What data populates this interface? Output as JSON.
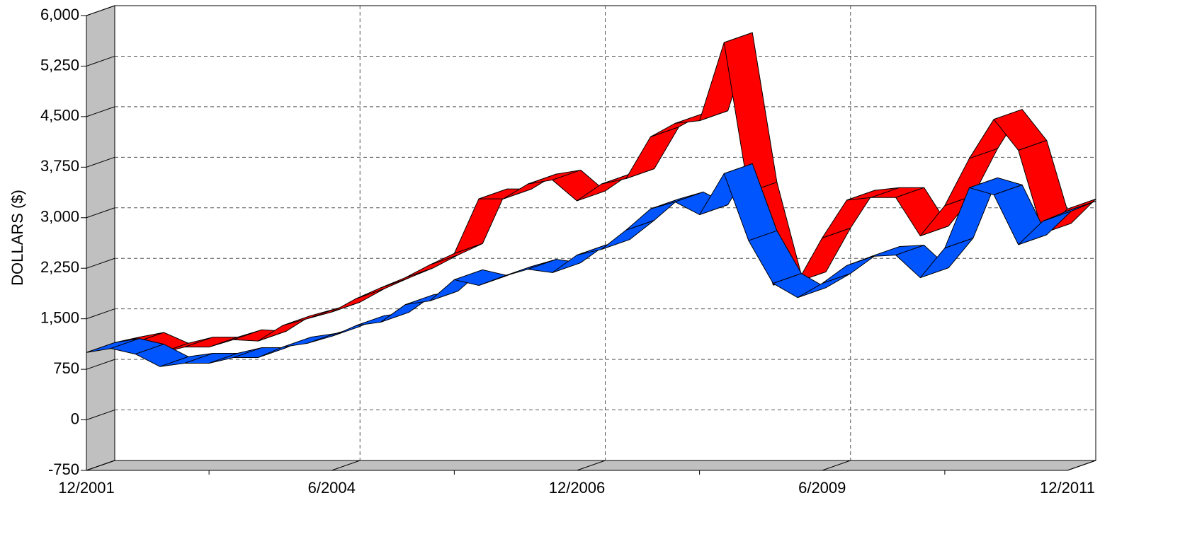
{
  "chart_data": {
    "type": "ribbon3d",
    "y_label": "DOLLARS ($)",
    "categories": [
      "12/2001",
      null,
      null,
      null,
      null,
      null,
      null,
      null,
      null,
      null,
      "6/2004",
      null,
      null,
      null,
      null,
      null,
      null,
      null,
      null,
      null,
      "12/2006",
      null,
      null,
      null,
      null,
      null,
      null,
      null,
      null,
      null,
      "6/2009",
      null,
      null,
      null,
      null,
      null,
      null,
      null,
      null,
      null,
      "12/2011"
    ],
    "series": [
      {
        "color": "#ff0000",
        "values": [
          1000,
          1080,
          1150,
          990,
          1080,
          1080,
          1190,
          1170,
          1400,
          1500,
          1600,
          1800,
          1960,
          2110,
          2300,
          2470,
          3280,
          3280,
          3500,
          3560,
          3250,
          3500,
          3580,
          4200,
          4400,
          4440,
          5600,
          3380,
          2000,
          2050,
          2700,
          3260,
          3300,
          3300,
          2730,
          3180,
          3880,
          4460,
          4000,
          2770,
          3130
        ]
      },
      {
        "color": "#0055ff",
        "values": [
          1000,
          1060,
          976,
          790,
          840,
          840,
          925,
          925,
          1080,
          1135,
          1240,
          1400,
          1450,
          1710,
          1765,
          2080,
          1995,
          2130,
          2235,
          2185,
          2445,
          2530,
          2815,
          3130,
          3235,
          3045,
          3655,
          2660,
          2025,
          1815,
          2025,
          2290,
          2425,
          2445,
          2110,
          2550,
          3445,
          3340,
          2600,
          2950,
          3100
        ]
      }
    ],
    "ylim": [
      -750,
      6000
    ],
    "yticks": [
      {
        "value": -750,
        "label": "-750"
      },
      0,
      750,
      {
        "value": 1500,
        "label": "1,500"
      },
      {
        "value": 2250,
        "label": "2,250"
      },
      {
        "value": 3000,
        "label": "3,000"
      },
      {
        "value": 3750,
        "label": "3,750"
      },
      {
        "value": 4500,
        "label": "4,500"
      },
      {
        "value": 5250,
        "label": "5,250"
      },
      {
        "value": 6000,
        "label": "6,000"
      }
    ],
    "grid": true
  }
}
